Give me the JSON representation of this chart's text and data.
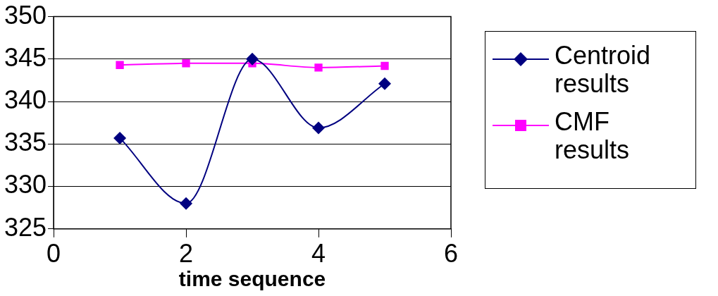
{
  "chart_data": {
    "type": "line",
    "xlabel": "time sequence",
    "series": [
      {
        "name": "Centroid results",
        "color": "#000080",
        "marker": "diamond",
        "x": [
          1,
          2,
          3,
          4,
          5
        ],
        "values": [
          335.7,
          328.0,
          345.0,
          336.9,
          342.1
        ]
      },
      {
        "name": "CMF results",
        "color": "#ff00ff",
        "marker": "square",
        "x": [
          1,
          2,
          3,
          4,
          5
        ],
        "values": [
          344.3,
          344.5,
          344.5,
          344.0,
          344.2
        ]
      }
    ],
    "xlim": [
      0,
      6
    ],
    "xticks": [
      0,
      2,
      4,
      6
    ],
    "ylim": [
      325,
      350
    ],
    "yticks": [
      325,
      330,
      335,
      340,
      345,
      350
    ],
    "grid": "y",
    "legend": "right"
  }
}
